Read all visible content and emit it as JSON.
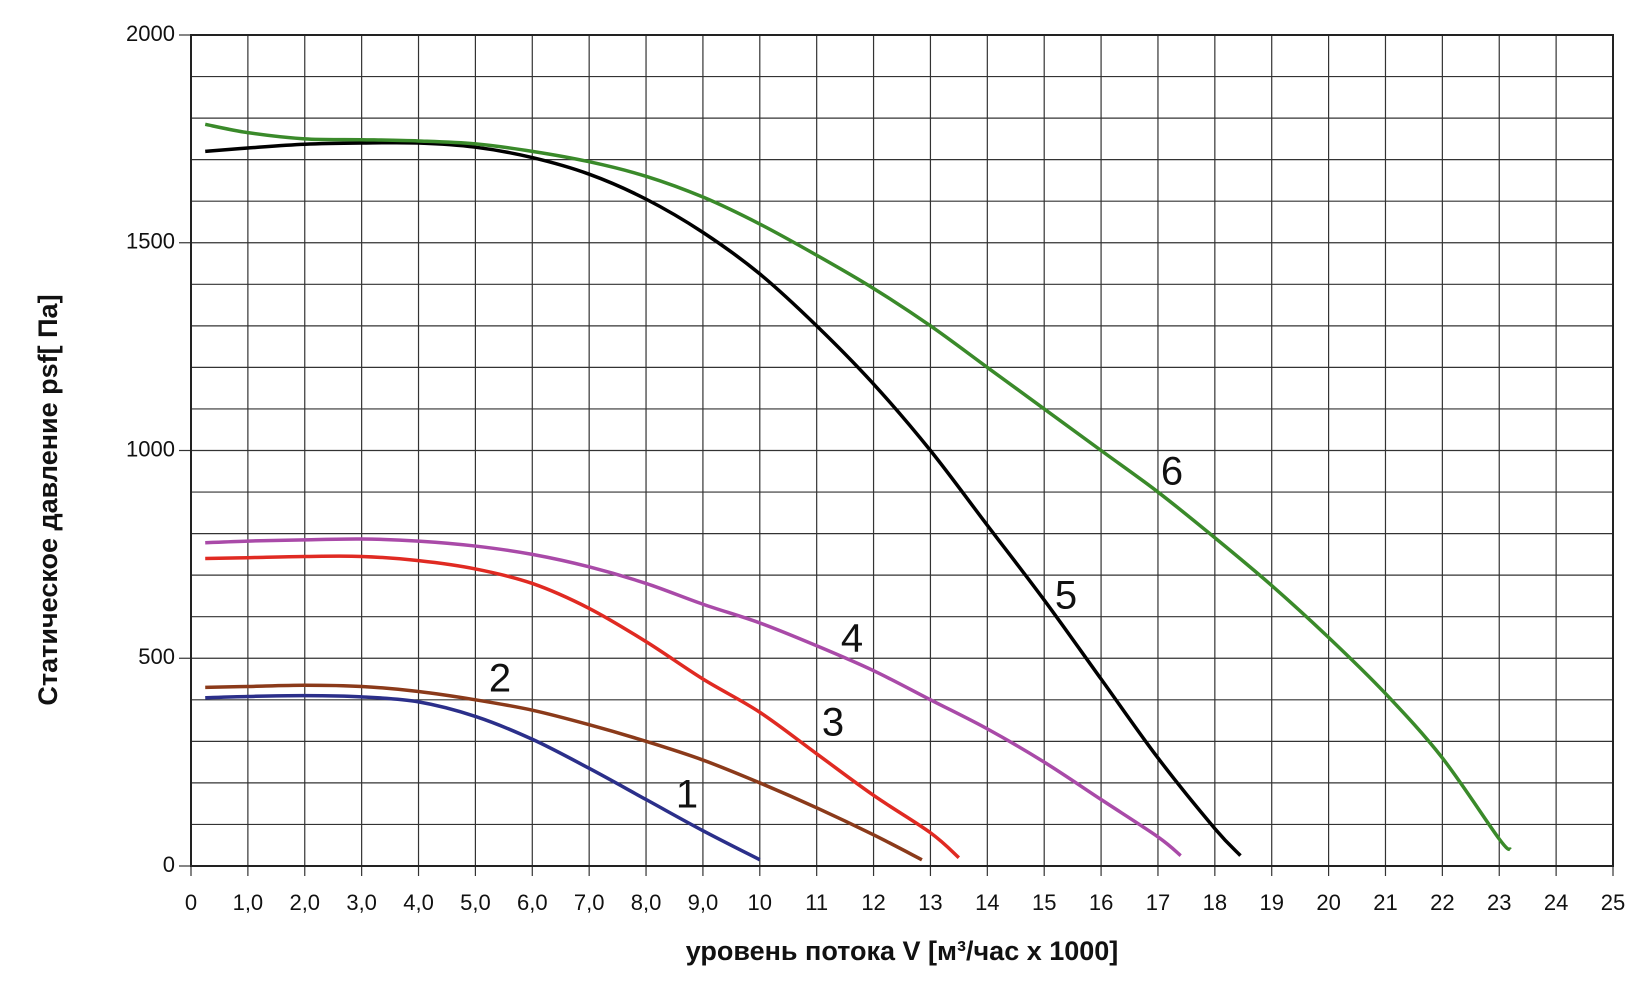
{
  "chart_data": {
    "type": "line",
    "x_label": "уровень потока  V [м³/час х 1000]",
    "y_label": "Статическое давление  psf[ Па]",
    "xlim": [
      0,
      25
    ],
    "ylim": [
      0,
      2000
    ],
    "xticks": [
      0,
      {
        "value": 1,
        "label": "1,0"
      },
      {
        "value": 2,
        "label": "2,0"
      },
      {
        "value": 3,
        "label": "3,0"
      },
      {
        "value": 4,
        "label": "4,0"
      },
      {
        "value": 5,
        "label": "5,0"
      },
      {
        "value": 6,
        "label": "6,0"
      },
      {
        "value": 7,
        "label": "7,0"
      },
      {
        "value": 8,
        "label": "8,0"
      },
      {
        "value": 9,
        "label": "9,0"
      },
      10,
      11,
      12,
      13,
      14,
      15,
      16,
      17,
      18,
      19,
      20,
      21,
      22,
      23,
      24,
      25
    ],
    "yticks": [
      0,
      500,
      1000,
      1500,
      2000
    ],
    "ygrid": [
      100,
      200,
      300,
      400,
      600,
      700,
      800,
      900,
      1100,
      1200,
      1300,
      1400,
      1600,
      1700,
      1800,
      1900
    ],
    "grid": true,
    "series": [
      {
        "name": "1",
        "color": "#2b2f8a",
        "x": [
          0.25,
          1,
          2,
          3,
          4,
          5,
          6,
          7,
          8,
          9,
          10
        ],
        "values": [
          405,
          408,
          410,
          407,
          395,
          360,
          305,
          235,
          160,
          85,
          15
        ]
      },
      {
        "name": "2",
        "color": "#8b3a1a",
        "x": [
          0.25,
          1,
          2,
          3,
          4,
          5,
          6,
          7,
          8,
          9,
          10,
          11,
          12,
          12.85
        ],
        "values": [
          430,
          432,
          435,
          432,
          420,
          400,
          375,
          340,
          300,
          255,
          200,
          140,
          75,
          15
        ]
      },
      {
        "name": "3",
        "color": "#e02a22",
        "x": [
          0.25,
          1,
          2,
          3,
          4,
          5,
          6,
          7,
          8,
          9,
          10,
          11,
          12,
          13,
          13.5
        ],
        "values": [
          740,
          742,
          745,
          745,
          735,
          715,
          680,
          620,
          540,
          450,
          370,
          270,
          170,
          80,
          20
        ]
      },
      {
        "name": "4",
        "color": "#a94aa8",
        "x": [
          0.25,
          1,
          2,
          3,
          4,
          5,
          6,
          7,
          8,
          9,
          10,
          11,
          12,
          13,
          14,
          15,
          16,
          17,
          17.4
        ],
        "values": [
          778,
          782,
          785,
          787,
          782,
          770,
          750,
          720,
          680,
          630,
          585,
          530,
          470,
          400,
          330,
          250,
          160,
          70,
          25
        ]
      },
      {
        "name": "5",
        "color": "#000000",
        "x": [
          0.25,
          1,
          2,
          3,
          4,
          5,
          6,
          7,
          8,
          9,
          10,
          11,
          12,
          13,
          14,
          15,
          16,
          17,
          18,
          18.45
        ],
        "values": [
          1720,
          1728,
          1737,
          1740,
          1740,
          1730,
          1705,
          1665,
          1605,
          1525,
          1425,
          1300,
          1160,
          1000,
          820,
          640,
          450,
          260,
          90,
          25
        ]
      },
      {
        "name": "6",
        "color": "#3a8a2a",
        "x": [
          0.25,
          1,
          2,
          3,
          4,
          5,
          6,
          7,
          8,
          9,
          10,
          11,
          12,
          13,
          14,
          15,
          16,
          17,
          18,
          19,
          20,
          21,
          22,
          23,
          23.2
        ],
        "values": [
          1785,
          1765,
          1750,
          1748,
          1745,
          1738,
          1720,
          1695,
          1660,
          1610,
          1545,
          1470,
          1390,
          1300,
          1200,
          1100,
          1000,
          900,
          790,
          675,
          550,
          415,
          260,
          65,
          40
        ]
      }
    ]
  }
}
